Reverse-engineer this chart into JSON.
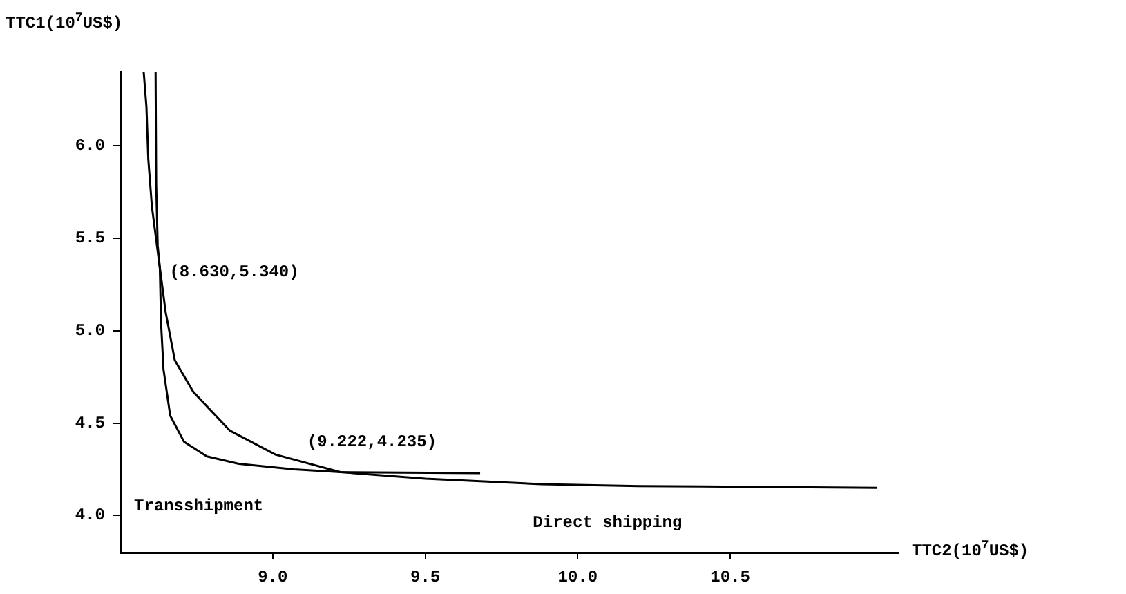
{
  "chart_data": {
    "type": "line",
    "xlabel": "TTC2(10$^{7}$US$)",
    "ylabel": "TTC1(10$^{7}$US$)",
    "xlim": [
      8.5,
      11.05
    ],
    "ylim": [
      3.8,
      6.4
    ],
    "xticks": [
      {
        "value": 9,
        "label": "9.0"
      },
      9.5,
      {
        "value": 10,
        "label": "10.0"
      },
      10.5
    ],
    "yticks": [
      {
        "value": 4,
        "label": "4.0"
      },
      4.5,
      {
        "value": 5,
        "label": "5.0"
      },
      5.5,
      {
        "value": 6,
        "label": "6.0"
      }
    ],
    "grid": false,
    "legend": false,
    "marker": "none",
    "line_style": "solid",
    "series": [
      {
        "name": "Transshipment",
        "color": "#000000",
        "x": [
          8.616,
          8.618,
          8.623,
          8.63,
          8.634,
          8.642,
          8.664,
          8.709,
          8.784,
          8.889,
          9.07,
          9.222,
          9.68
        ],
        "values": [
          6.4,
          5.79,
          5.46,
          5.34,
          5.04,
          4.79,
          4.54,
          4.4,
          4.32,
          4.28,
          4.25,
          4.235,
          4.23
        ]
      },
      {
        "name": "Direct shipping",
        "color": "#000000",
        "x": [
          8.577,
          8.586,
          8.592,
          8.604,
          8.63,
          8.649,
          8.679,
          8.739,
          8.859,
          9.009,
          9.222,
          9.5,
          9.88,
          10.2,
          10.98
        ],
        "values": [
          6.4,
          6.21,
          5.93,
          5.67,
          5.34,
          5.1,
          4.84,
          4.67,
          4.46,
          4.33,
          4.235,
          4.2,
          4.17,
          4.16,
          4.15
        ]
      }
    ],
    "annotations": [
      {
        "text": "(8.630,5.340)",
        "x": 8.63,
        "y": 5.34
      },
      {
        "text": "(9.222,4.235)",
        "x": 9.222,
        "y": 4.235
      }
    ]
  }
}
